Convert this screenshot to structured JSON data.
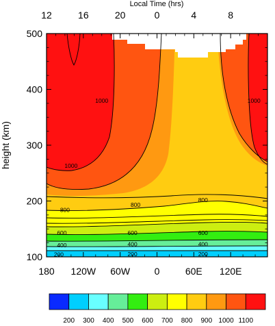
{
  "chart_data": {
    "type": "heatmap",
    "top_axis_label": "Local Time (hrs)",
    "top_ticks": [
      {
        "lon": -180,
        "label": "12"
      },
      {
        "lon": -120,
        "label": "16"
      },
      {
        "lon": -60,
        "label": "20"
      },
      {
        "lon": 0,
        "label": "0"
      },
      {
        "lon": 60,
        "label": "4"
      },
      {
        "lon": 120,
        "label": "8"
      }
    ],
    "ylabel": "height (km)",
    "xlim": [
      -180,
      180
    ],
    "ylim": [
      100,
      500
    ],
    "x_ticks": [
      {
        "value": -180,
        "label": "180"
      },
      {
        "value": -120,
        "label": "120W"
      },
      {
        "value": -60,
        "label": "60W"
      },
      {
        "value": 0,
        "label": "0"
      },
      {
        "value": 60,
        "label": "60E"
      },
      {
        "value": 120,
        "label": "120E"
      }
    ],
    "y_ticks": [
      100,
      200,
      300,
      400,
      500
    ],
    "levels": [
      200,
      300,
      400,
      500,
      600,
      700,
      800,
      900,
      1000,
      1100
    ],
    "colors": [
      "#0a2aff",
      "#00cfff",
      "#69ffff",
      "#66ee99",
      "#33ee11",
      "#ccee11",
      "#ffff00",
      "#ffcc11",
      "#ff9911",
      "#ff5511",
      "#ff1111"
    ],
    "contour_labels": [
      {
        "text": "200",
        "x": -160,
        "y": 104
      },
      {
        "text": "400",
        "x": -155,
        "y": 121
      },
      {
        "text": "600",
        "x": -155,
        "y": 143
      },
      {
        "text": "800",
        "x": -150,
        "y": 184
      },
      {
        "text": "1000",
        "x": -140,
        "y": 263
      },
      {
        "text": "1000",
        "x": -90,
        "y": 380
      },
      {
        "text": "600",
        "x": -40,
        "y": 143
      },
      {
        "text": "400",
        "x": -40,
        "y": 123
      },
      {
        "text": "200",
        "x": -40,
        "y": 105
      },
      {
        "text": "800",
        "x": -35,
        "y": 193
      },
      {
        "text": "800",
        "x": 75,
        "y": 202
      },
      {
        "text": "600",
        "x": 75,
        "y": 143
      },
      {
        "text": "400",
        "x": 75,
        "y": 123
      },
      {
        "text": "200",
        "x": 75,
        "y": 105
      },
      {
        "text": "1000",
        "x": 158,
        "y": 380
      }
    ],
    "colorbar_labels": [
      "200",
      "300",
      "400",
      "500",
      "600",
      "700",
      "800",
      "900",
      "1000",
      "1100"
    ]
  }
}
